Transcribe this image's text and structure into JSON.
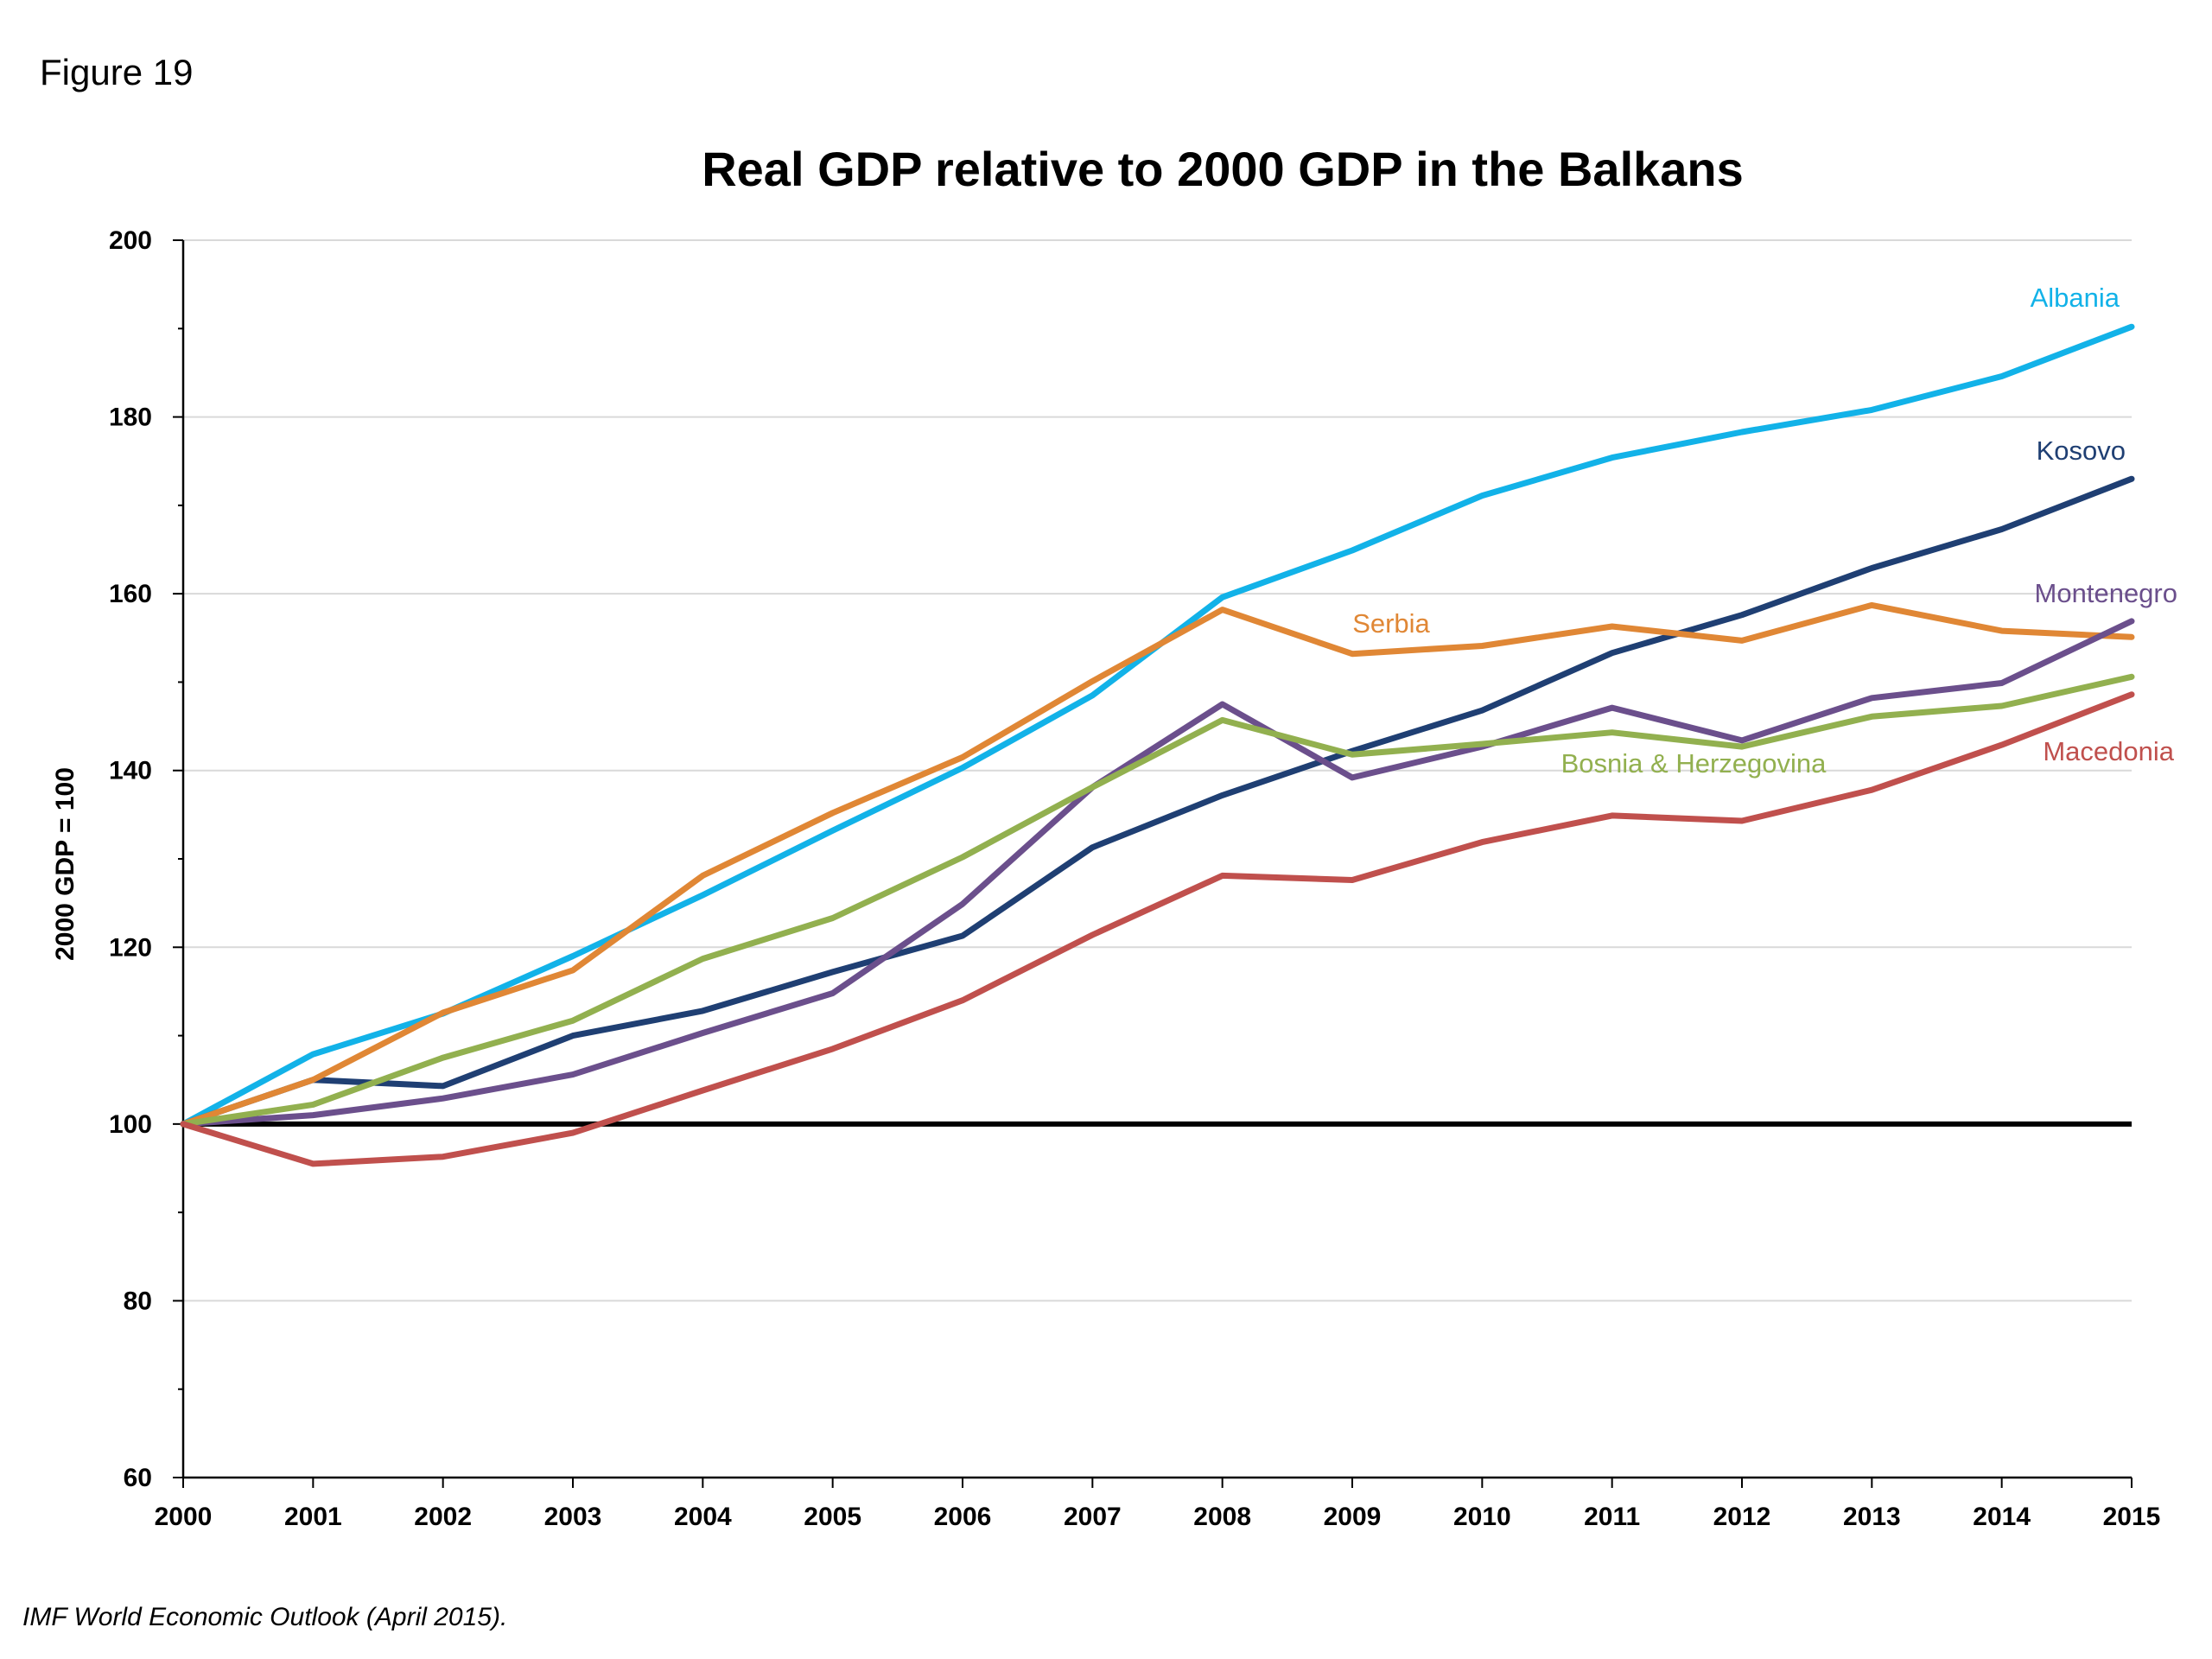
{
  "figure_label": "Figure 19",
  "source_note": "IMF World Economic Outlook (April 2015).",
  "colors": {
    "albania": "#12b2e8",
    "kosovo": "#1f3f73",
    "serbia": "#e08735",
    "montenegro": "#6b4f8c",
    "bosnia": "#92b04f",
    "macedonia": "#c0504d",
    "baseline": "#000000",
    "grid": "#d9d9d9"
  },
  "chart_data": {
    "type": "line",
    "title": "Real GDP relative to 2000 GDP in the Balkans",
    "xlabel": "",
    "ylabel": "2000 GDP = 100",
    "ylim": [
      60,
      200
    ],
    "yticks": [
      60,
      80,
      100,
      120,
      140,
      160,
      180,
      200
    ],
    "grid": "horizontal",
    "baseline": 100,
    "x": [
      "2000",
      "2001",
      "2002",
      "2003",
      "2004",
      "2005",
      "2006",
      "2007",
      "2008",
      "2009",
      "2010",
      "2011",
      "2012",
      "2013",
      "2014",
      "2015"
    ],
    "series": [
      {
        "name": "Albania",
        "color_key": "albania",
        "values": [
          100,
          107.9,
          112.5,
          119.0,
          125.9,
          133.2,
          140.3,
          148.5,
          159.6,
          164.9,
          171.1,
          175.4,
          178.3,
          180.8,
          184.6,
          190.2
        ]
      },
      {
        "name": "Kosovo",
        "color_key": "kosovo",
        "values": [
          100,
          105.0,
          104.3,
          110.0,
          112.8,
          117.2,
          121.3,
          131.3,
          137.2,
          142.2,
          146.8,
          153.3,
          157.6,
          162.9,
          167.3,
          173.0
        ]
      },
      {
        "name": "Serbia",
        "color_key": "serbia",
        "values": [
          100,
          105.0,
          112.6,
          117.4,
          128.1,
          135.2,
          141.5,
          150.1,
          158.2,
          153.2,
          154.1,
          156.3,
          154.7,
          158.7,
          155.8,
          155.1
        ]
      },
      {
        "name": "Montenegro",
        "color_key": "montenegro",
        "values": [
          100,
          101.0,
          102.9,
          105.6,
          110.3,
          114.8,
          124.9,
          138.1,
          147.5,
          139.2,
          142.7,
          147.1,
          143.4,
          148.2,
          149.9,
          156.9
        ]
      },
      {
        "name": "Bosnia & Herzegovina",
        "color_key": "bosnia",
        "values": [
          100,
          102.2,
          107.5,
          111.7,
          118.7,
          123.3,
          130.2,
          138.1,
          145.7,
          141.8,
          143.0,
          144.3,
          142.7,
          146.1,
          147.3,
          150.6
        ]
      },
      {
        "name": "Macedonia",
        "color_key": "macedonia",
        "values": [
          100,
          95.5,
          96.3,
          99.0,
          103.8,
          108.5,
          114.0,
          121.4,
          128.1,
          127.6,
          131.9,
          134.9,
          134.3,
          137.8,
          142.9,
          148.6
        ]
      }
    ]
  }
}
